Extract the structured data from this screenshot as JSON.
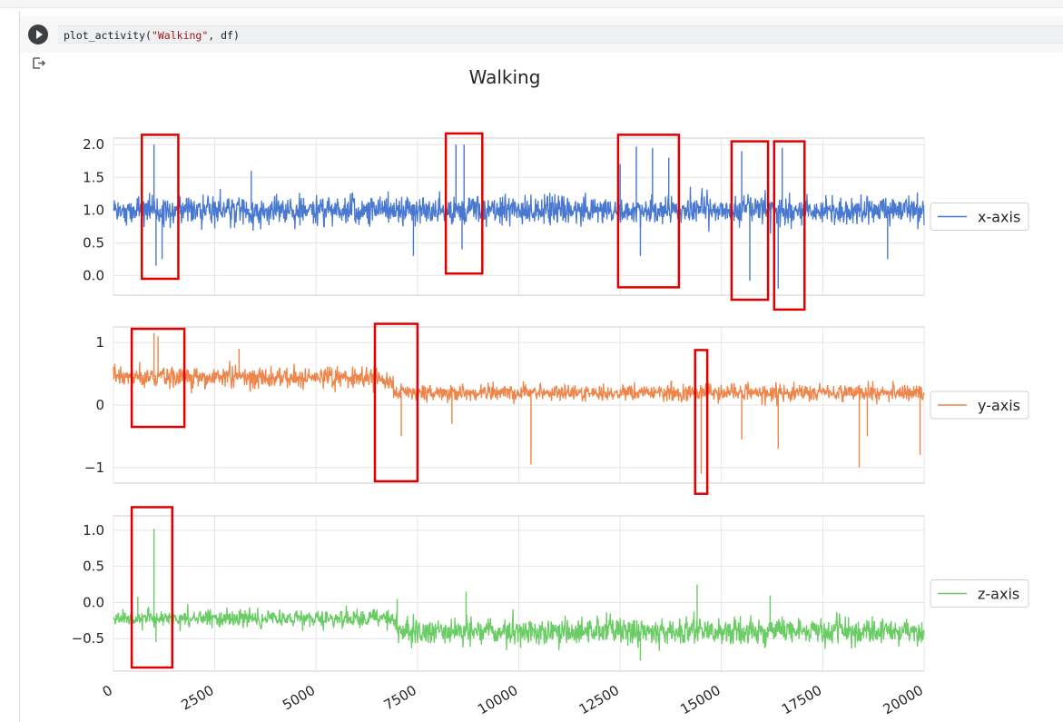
{
  "notebook": {
    "code": {
      "function": "plot_activity",
      "open": "(",
      "arg_string": "\"Walking\"",
      "rest": ", df)"
    },
    "run_icon": "play-icon",
    "output_icon": "output-redirect-icon"
  },
  "chart_data": {
    "type": "line",
    "title": "Walking",
    "x_range": [
      0,
      20000
    ],
    "x_ticks": [
      0,
      2500,
      5000,
      7500,
      10000,
      12500,
      15000,
      17500,
      20000
    ],
    "x_tick_labels": [
      "0",
      "2500",
      "5000",
      "7500",
      "10000",
      "12500",
      "15000",
      "17500",
      "20000"
    ],
    "grid": true,
    "legend_placement": "right",
    "series": [
      {
        "name": "x-axis",
        "color": "#4878d0",
        "ylim": [
          -0.3,
          2.1
        ],
        "y_ticks": [
          0.0,
          0.5,
          1.0,
          1.5,
          2.0
        ],
        "y_tick_labels": [
          "0.0",
          "0.5",
          "1.0",
          "1.5",
          "2.0"
        ],
        "baseline": 1.0,
        "band": 0.36,
        "segments": [
          [
            0,
            1.0,
            0.36
          ],
          [
            20000,
            1.0,
            0.36
          ]
        ],
        "spikes": [
          [
            1000,
            2.0
          ],
          [
            1050,
            0.15
          ],
          [
            1200,
            0.25
          ],
          [
            3400,
            1.6
          ],
          [
            7400,
            0.3
          ],
          [
            8450,
            2.0
          ],
          [
            8650,
            2.0
          ],
          [
            8600,
            0.4
          ],
          [
            12500,
            1.7
          ],
          [
            12900,
            1.97
          ],
          [
            13300,
            1.95
          ],
          [
            13000,
            0.3
          ],
          [
            13700,
            1.8
          ],
          [
            15500,
            1.9
          ],
          [
            15700,
            -0.08
          ],
          [
            16400,
            -0.2
          ],
          [
            16500,
            1.95
          ],
          [
            19100,
            0.25
          ]
        ],
        "highlight_boxes": [
          [
            700,
            1600,
            -0.05,
            2.15
          ],
          [
            8200,
            9100,
            0.03,
            2.17
          ],
          [
            12450,
            13950,
            -0.18,
            2.15
          ],
          [
            15250,
            16150,
            -0.37,
            2.05
          ],
          [
            16300,
            17050,
            -0.52,
            2.05
          ]
        ]
      },
      {
        "name": "y-axis",
        "color": "#ee854a",
        "ylim": [
          -1.25,
          1.25
        ],
        "y_ticks": [
          -1,
          0,
          1
        ],
        "y_tick_labels": [
          "−1",
          "0",
          "1"
        ],
        "segments": [
          [
            0,
            0.45,
            0.28
          ],
          [
            6500,
            0.4,
            0.3
          ],
          [
            6900,
            0.2,
            0.22
          ],
          [
            20000,
            0.3,
            0.18
          ]
        ],
        "spikes": [
          [
            1000,
            1.15
          ],
          [
            1100,
            1.1
          ],
          [
            3100,
            0.9
          ],
          [
            7100,
            -0.5
          ],
          [
            8350,
            -0.3
          ],
          [
            10300,
            -0.95
          ],
          [
            14500,
            -1.1
          ],
          [
            15500,
            -0.55
          ],
          [
            16400,
            -0.7
          ],
          [
            18400,
            -1.0
          ],
          [
            18600,
            -0.5
          ],
          [
            19900,
            -0.8
          ]
        ],
        "highlight_boxes": [
          [
            450,
            1750,
            -0.35,
            1.22
          ],
          [
            6450,
            7500,
            -1.22,
            1.3
          ],
          [
            14350,
            14650,
            -1.42,
            0.88
          ]
        ]
      },
      {
        "name": "z-axis",
        "color": "#6acc64",
        "ylim": [
          -0.95,
          1.2
        ],
        "y_ticks": [
          -0.5,
          0.0,
          0.5,
          1.0
        ],
        "y_tick_labels": [
          "−0.5",
          "0.0",
          "0.5",
          "1.0"
        ],
        "segments": [
          [
            0,
            -0.22,
            0.2
          ],
          [
            6800,
            -0.25,
            0.2
          ],
          [
            7000,
            -0.4,
            0.3
          ],
          [
            20000,
            -0.35,
            0.26
          ]
        ],
        "spikes": [
          [
            600,
            0.08
          ],
          [
            1000,
            1.02
          ],
          [
            1050,
            -0.55
          ],
          [
            7000,
            0.05
          ],
          [
            8700,
            0.15
          ],
          [
            13000,
            -0.8
          ],
          [
            14400,
            0.25
          ],
          [
            16200,
            0.1
          ]
        ],
        "highlight_boxes": [
          [
            450,
            1450,
            -0.9,
            1.32
          ]
        ]
      }
    ]
  }
}
